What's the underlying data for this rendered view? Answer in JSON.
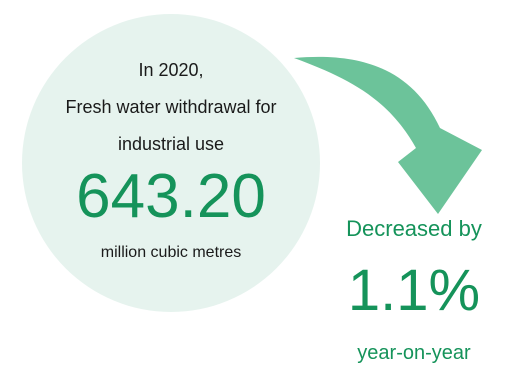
{
  "circle": {
    "line1": "In 2020,",
    "line2": "Fresh water withdrawal for",
    "line3": "industrial use",
    "value": "643.20",
    "unit": "million cubic metres"
  },
  "change": {
    "label": "Decreased by",
    "value": "1.1%",
    "suffix": "year-on-year"
  },
  "colors": {
    "accent": "#15935a",
    "circle_fill": "#e6f3ee",
    "arrow": "#6cc39a"
  }
}
